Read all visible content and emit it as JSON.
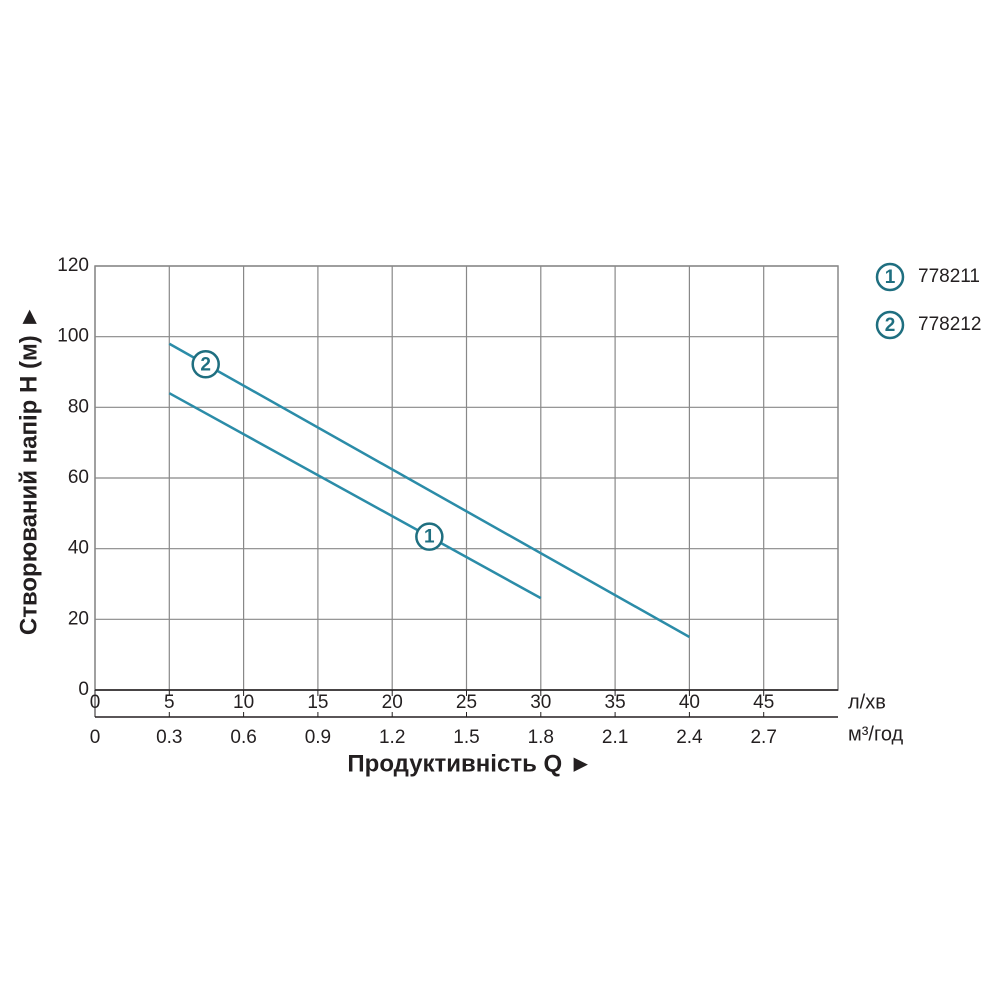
{
  "chart_data": {
    "type": "line",
    "y_label": "Створюваний напір H (м) ►",
    "x_label": "Продуктивність  Q ►",
    "x_unit": "л/хв",
    "x2_unit": "м³/год",
    "xlim": [
      0,
      50
    ],
    "xticks": [
      0,
      5,
      10,
      15,
      20,
      25,
      30,
      35,
      40,
      45
    ],
    "x2lim": [
      0,
      3
    ],
    "x2ticks": [
      0,
      0.3,
      0.6,
      0.9,
      1.2,
      1.5,
      1.8,
      2.1,
      2.4,
      2.7
    ],
    "ylim": [
      0,
      120
    ],
    "yticks": [
      0,
      20,
      40,
      60,
      80,
      100,
      120
    ],
    "grid": true,
    "series": [
      {
        "name": "778211",
        "marker_label": "1",
        "color": "#2b8ca8",
        "x": [
          5,
          30
        ],
        "values": [
          84,
          26
        ]
      },
      {
        "name": "778212",
        "marker_label": "2",
        "color": "#2b8ca8",
        "x": [
          5,
          40
        ],
        "values": [
          98,
          15
        ]
      }
    ]
  }
}
